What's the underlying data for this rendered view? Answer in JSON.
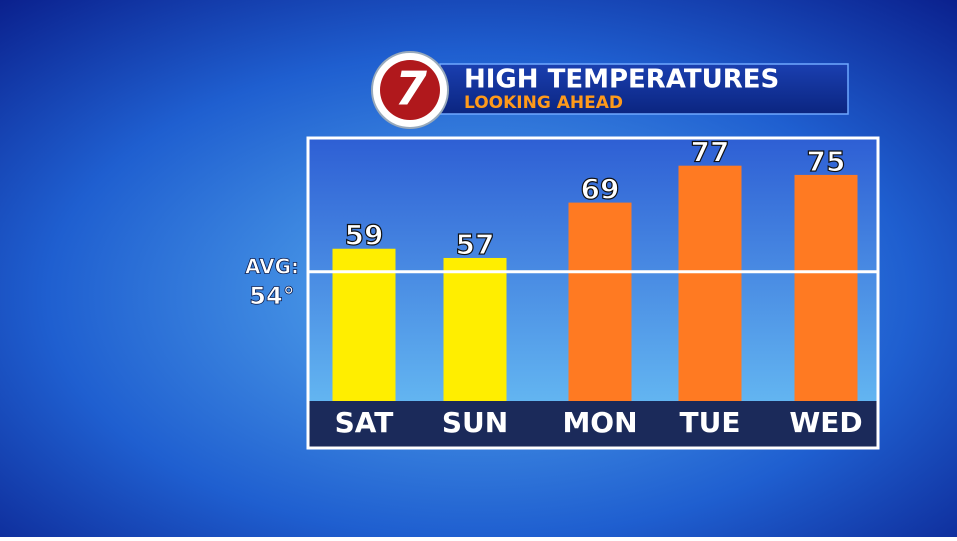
{
  "chart_data": {
    "type": "bar",
    "logo": "7",
    "title": "HIGH TEMPERATURES",
    "subtitle": "LOOKING AHEAD",
    "categories": [
      "SAT",
      "SUN",
      "MON",
      "TUE",
      "WED"
    ],
    "values": [
      59,
      57,
      69,
      77,
      75
    ],
    "colors": [
      "#ffee00",
      "#ffee00",
      "#ff7a22",
      "#ff7a22",
      "#ff7a22"
    ],
    "ylim": [
      26,
      83
    ],
    "average": {
      "label": "AVG:",
      "value": 54,
      "value_label": "54°",
      "color": "#ffffff"
    }
  }
}
